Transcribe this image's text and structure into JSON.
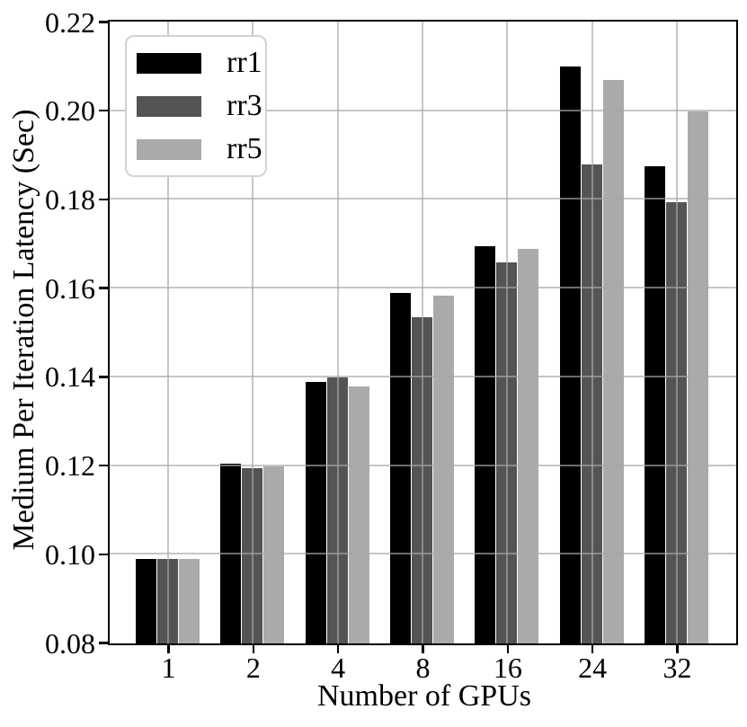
{
  "chart_data": {
    "type": "bar",
    "title": "",
    "xlabel": "Number of GPUs",
    "ylabel": "Medium Per Iteration Latency (Sec)",
    "categories": [
      "1",
      "2",
      "4",
      "8",
      "16",
      "24",
      "32"
    ],
    "series": [
      {
        "name": "rr1",
        "color": "#000000",
        "values": [
          0.099,
          0.1205,
          0.139,
          0.159,
          0.1695,
          0.21,
          0.1875
        ]
      },
      {
        "name": "rr3",
        "color": "#545454",
        "values": [
          0.099,
          0.1195,
          0.14,
          0.1535,
          0.166,
          0.188,
          0.1795
        ]
      },
      {
        "name": "rr5",
        "color": "#aaaaaa",
        "values": [
          0.099,
          0.12,
          0.138,
          0.1585,
          0.169,
          0.207,
          0.2
        ]
      }
    ],
    "ylim": [
      0.08,
      0.22
    ],
    "ytick_step": 0.02,
    "ytick_labels": [
      "0.08",
      "0.10",
      "0.12",
      "0.14",
      "0.16",
      "0.18",
      "0.20",
      "0.22"
    ],
    "grid": true,
    "gridlines_above_bars": true,
    "legend_position": "upper-left"
  },
  "colors": {
    "background": "#ffffff",
    "spine": "#000000",
    "grid": "#c8c8c8",
    "legend_border": "#d2d2d2"
  }
}
